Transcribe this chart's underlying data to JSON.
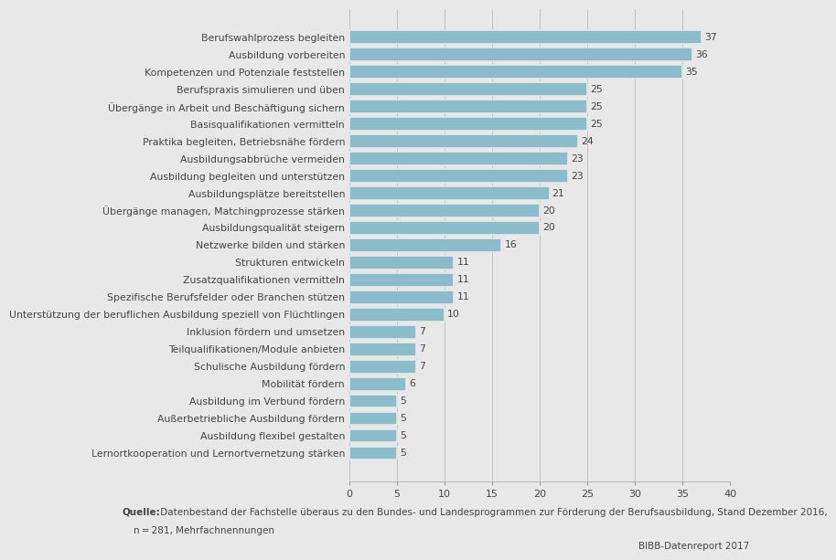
{
  "categories": [
    "Berufswahlprozess begleiten",
    "Ausbildung vorbereiten",
    "Kompetenzen und Potenziale feststellen",
    "Berufspraxis simulieren und üben",
    "Übergänge in Arbeit und Beschäftigung sichern",
    "Basisqualifikationen vermitteln",
    "Praktika begleiten, Betriebsnähe fördern",
    "Ausbildungsabbrüche vermeiden",
    "Ausbildung begleiten und unterstützen",
    "Ausbildungsplätze bereitstellen",
    "Übergänge managen, Matchingprozesse stärken",
    "Ausbildungsqualität steigern",
    "Netzwerke bilden und stärken",
    "Strukturen entwickeln",
    "Zusatzqualifikationen vermitteln",
    "Spezifische Berufsfelder oder Branchen stützen",
    "Unterstützung der beruflichen Ausbildung speziell von Flüchtlingen",
    "Inklusion fördern und umsetzen",
    "Teilqualifikationen/Module anbieten",
    "Schulische Ausbildung fördern",
    "Mobilität fördern",
    "Ausbildung im Verbund fördern",
    "Außerbetriebliche Ausbildung fördern",
    "Ausbildung flexibel gestalten",
    "Lernortkooperation und Lernortvernetzung stärken"
  ],
  "values": [
    37,
    36,
    35,
    25,
    25,
    25,
    24,
    23,
    23,
    21,
    20,
    20,
    16,
    11,
    11,
    11,
    10,
    7,
    7,
    7,
    6,
    5,
    5,
    5,
    5
  ],
  "bar_color": "#8bbccc",
  "background_color": "#e8e8e8",
  "xlim": [
    0,
    40
  ],
  "xticks": [
    0,
    5,
    10,
    15,
    20,
    25,
    30,
    35,
    40
  ],
  "footnote_line1": " Datenbestand der Fachstelle überaus zu den Bundes- und Landesprogrammen zur Förderung der Berufsausbildung, Stand Dezember 2016,",
  "footnote_bold": "Quelle:",
  "footnote_line2": "    n = 281, Mehrfachnennungen",
  "source_label": "BIBB-Datenreport 2017",
  "label_fontsize": 7.8,
  "value_fontsize": 7.8,
  "tick_fontsize": 8.0,
  "footnote_fontsize": 7.5
}
